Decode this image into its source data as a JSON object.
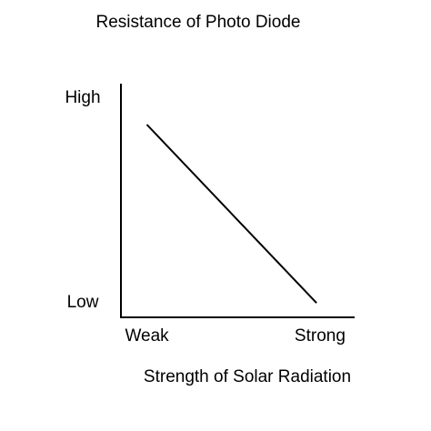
{
  "chart_data": {
    "type": "line",
    "title": "Resistance of Photo Diode",
    "x_label": "Strength of Solar Radiation",
    "series": [
      {
        "name": null,
        "color": "#000000",
        "x": [
          0,
          0.98
        ],
        "values": [
          0.87,
          0
        ]
      }
    ],
    "xlim": [
      -0.15,
      1.2
    ],
    "ylim": [
      -0.07,
      1.07
    ],
    "xticks": [
      {
        "value": 0,
        "label": "Weak"
      },
      {
        "value": 1,
        "label": "Strong"
      }
    ],
    "yticks": [
      {
        "value": 0,
        "label": "Low"
      },
      {
        "value": 1,
        "label": "High"
      }
    ],
    "grid": false
  }
}
